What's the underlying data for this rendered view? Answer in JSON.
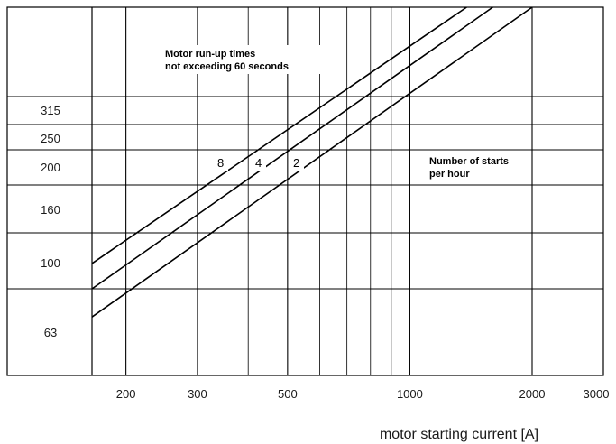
{
  "chart_data": {
    "type": "line",
    "title": "",
    "xlabel": "motor starting current [A]",
    "ylabel": "",
    "x_scale": "log",
    "xlim": [
      165,
      3000
    ],
    "x_ticks": [
      {
        "value": 200,
        "label": "200"
      },
      {
        "value": 300,
        "label": "300"
      },
      {
        "value": 500,
        "label": "500"
      },
      {
        "value": 1000,
        "label": "1000"
      },
      {
        "value": 2000,
        "label": "2000"
      },
      {
        "value": 3000,
        "label": "3000"
      }
    ],
    "y_bands": [
      {
        "label": "315"
      },
      {
        "label": "250"
      },
      {
        "label": "200"
      },
      {
        "label": "160"
      },
      {
        "label": "100"
      },
      {
        "label": "63"
      }
    ],
    "grid": true,
    "series": [
      {
        "name": "8",
        "points": [
          [
            165,
            0.09
          ],
          [
            1380,
            1.0
          ]
        ]
      },
      {
        "name": "4",
        "points": [
          [
            165,
            0.0
          ],
          [
            1600,
            1.0
          ]
        ]
      },
      {
        "name": "2",
        "points": [
          [
            165,
            -0.1
          ],
          [
            2000,
            1.0
          ]
        ]
      }
    ],
    "annotations": [
      {
        "lines": [
          "Motor run-up times",
          "not exceeding 60 seconds"
        ]
      },
      {
        "lines": [
          "Number of starts",
          "per hour"
        ]
      }
    ]
  }
}
